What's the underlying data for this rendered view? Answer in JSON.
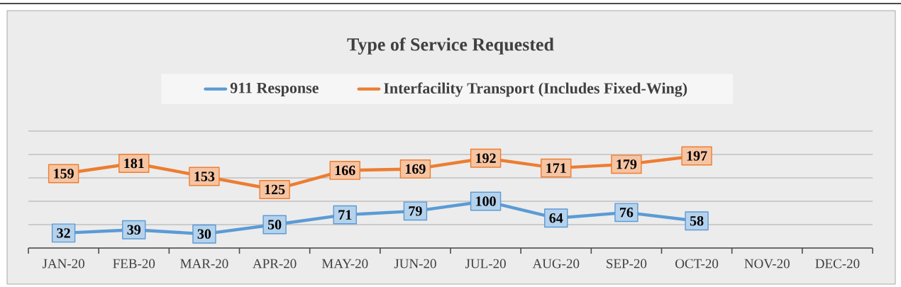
{
  "chart_data": {
    "type": "line",
    "title": "Type of Service Requested",
    "categories": [
      "JAN-20",
      "FEB-20",
      "MAR-20",
      "APR-20",
      "MAY-20",
      "JUN-20",
      "JUL-20",
      "AUG-20",
      "SEP-20",
      "OCT-20",
      "NOV-20",
      "DEC-20"
    ],
    "series": [
      {
        "name": "911 Response",
        "color": "#5b9bd5",
        "values": [
          32,
          39,
          30,
          50,
          71,
          79,
          100,
          64,
          76,
          58,
          null,
          null
        ]
      },
      {
        "name": "Interfacility Transport (Includes Fixed-Wing)",
        "color": "#ed7d31",
        "values": [
          159,
          181,
          153,
          125,
          166,
          169,
          192,
          171,
          179,
          197,
          null,
          null
        ]
      }
    ],
    "ylim": [
      0,
      250
    ],
    "yticks": [
      {
        "value": 0,
        "label": null
      },
      {
        "value": 50,
        "label": null
      },
      {
        "value": 100,
        "label": null
      },
      {
        "value": 150,
        "label": null
      },
      {
        "value": 200,
        "label": null
      },
      {
        "value": 250,
        "label": null
      }
    ],
    "tick_labels": "x",
    "grid": "y",
    "legend": "top",
    "data_labels": true,
    "marker": "square",
    "line_style": "solid"
  }
}
